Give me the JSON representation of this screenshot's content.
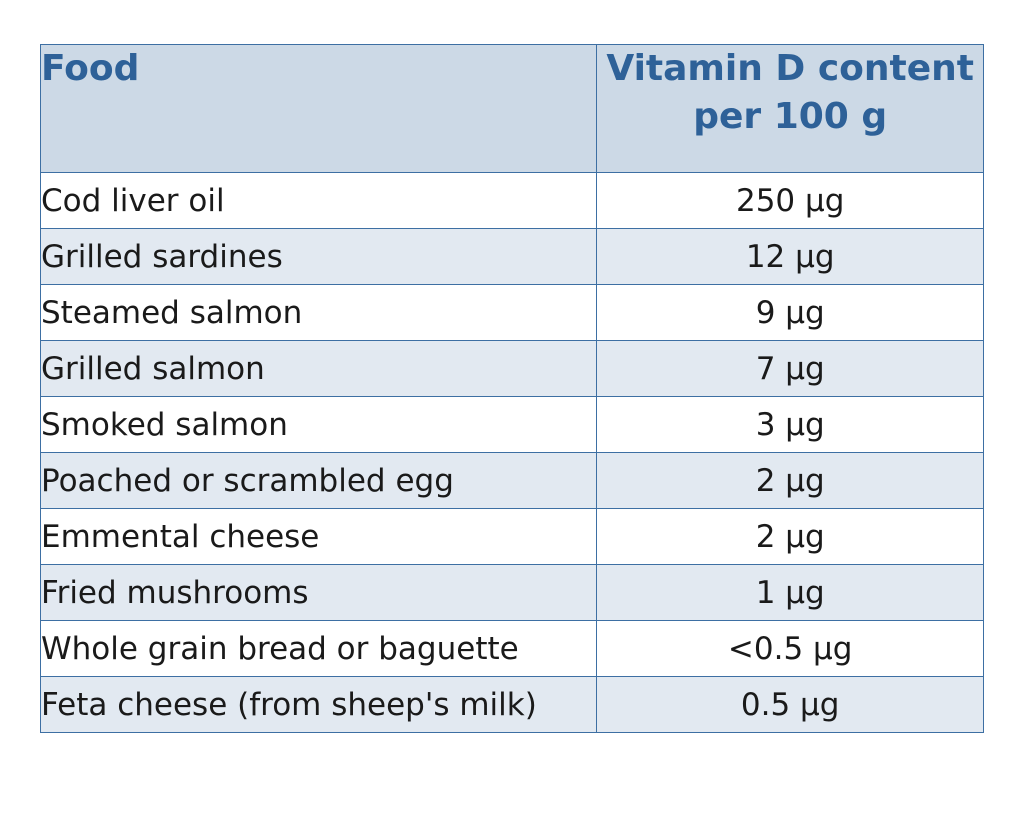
{
  "table": {
    "headers": {
      "food": "Food",
      "vitamin_line1": "Vitamin D content",
      "vitamin_line2": "per 100 g"
    },
    "rows": [
      {
        "food": "Cod liver oil",
        "vitamin_d": "250 µg"
      },
      {
        "food": "Grilled sardines",
        "vitamin_d": "12 µg"
      },
      {
        "food": "Steamed salmon",
        "vitamin_d": "9 µg"
      },
      {
        "food": "Grilled salmon",
        "vitamin_d": "7 µg"
      },
      {
        "food": "Smoked salmon",
        "vitamin_d": "3 µg"
      },
      {
        "food": "Poached or scrambled egg",
        "vitamin_d": "2 µg"
      },
      {
        "food": "Emmental cheese",
        "vitamin_d": "2 µg"
      },
      {
        "food": "Fried mushrooms",
        "vitamin_d": "1 µg"
      },
      {
        "food": "Whole grain bread or baguette",
        "vitamin_d": "<0.5 µg"
      },
      {
        "food": "Feta cheese (from sheep's milk)",
        "vitamin_d": "0.5 µg"
      }
    ]
  },
  "colors": {
    "border": "#3d6fa3",
    "header_background": "#ccd9e6",
    "header_text": "#2e6198",
    "alternate_row": "#e2e9f1",
    "row": "#ffffff"
  }
}
